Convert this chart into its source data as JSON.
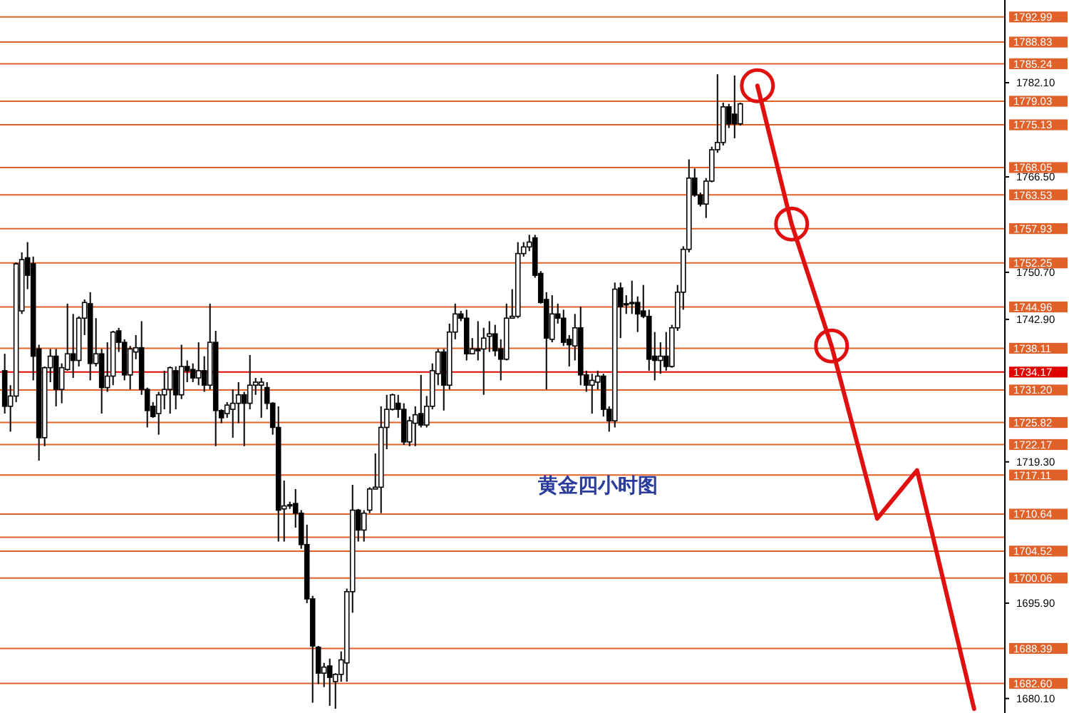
{
  "chart_data": {
    "type": "candlestick",
    "categories": [
      null,
      null,
      null,
      null,
      null,
      null,
      null,
      null,
      null,
      null,
      null,
      null,
      null,
      null,
      null,
      null,
      null,
      null,
      null,
      null,
      null,
      null,
      null,
      null,
      null,
      null,
      null,
      null,
      null,
      null,
      null,
      null,
      null,
      null,
      null,
      null,
      null,
      null,
      null,
      null,
      null,
      null,
      null,
      null,
      null,
      null,
      null,
      null,
      null,
      null,
      null,
      null,
      null,
      null,
      null,
      null,
      null,
      null,
      null,
      null,
      null,
      null,
      null,
      null,
      null,
      null,
      null,
      null,
      null,
      null,
      null,
      null,
      null,
      null,
      null,
      null,
      null,
      null,
      null,
      null,
      null,
      null,
      null,
      null,
      null,
      null,
      null,
      null,
      null,
      null,
      null,
      null,
      null,
      null,
      null,
      null,
      null,
      null,
      null,
      null,
      null,
      null,
      null,
      null,
      null,
      null,
      null,
      null,
      null,
      null,
      null,
      null,
      null,
      null,
      null,
      null,
      null,
      null,
      null,
      null,
      null,
      null,
      null,
      null,
      null,
      null,
      null,
      null,
      null,
      null,
      null,
      null,
      null,
      null,
      null,
      null,
      null,
      null,
      null,
      null,
      null,
      null,
      null,
      null,
      null,
      null,
      null,
      null,
      null,
      null,
      null,
      null,
      null,
      null,
      null,
      null,
      null,
      null,
      null,
      null,
      null,
      null,
      null,
      null,
      null,
      null,
      null,
      null,
      null,
      null,
      null,
      null,
      null,
      null,
      null,
      null
    ],
    "ohlc": [
      [
        1734.4,
        1737.2,
        1727.3,
        1728.5
      ],
      [
        1728.5,
        1732.0,
        1724.3,
        1730.2
      ],
      [
        1730.2,
        1752.3,
        1729.2,
        1752.1
      ],
      [
        1744.3,
        1754.0,
        1743.8,
        1752.8
      ],
      [
        1753.1,
        1755.7,
        1747.9,
        1750.2
      ],
      [
        1752.1,
        1753.3,
        1732.8,
        1736.8
      ],
      [
        1738.0,
        1738.7,
        1719.5,
        1723.3
      ],
      [
        1723.3,
        1735.1,
        1721.9,
        1734.9
      ],
      [
        1734.9,
        1738.0,
        1732.5,
        1736.8
      ],
      [
        1736.8,
        1738.0,
        1728.5,
        1731.3
      ],
      [
        1731.3,
        1735.6,
        1729.0,
        1734.9
      ],
      [
        1734.6,
        1745.5,
        1734.4,
        1737.2
      ],
      [
        1737.2,
        1743.8,
        1733.2,
        1736.1
      ],
      [
        1736.1,
        1743.4,
        1735.1,
        1743.1
      ],
      [
        1743.1,
        1746.2,
        1740.3,
        1745.7
      ],
      [
        1745.5,
        1747.4,
        1732.8,
        1735.6
      ],
      [
        1735.6,
        1743.1,
        1735.1,
        1737.2
      ],
      [
        1737.2,
        1738.0,
        1727.3,
        1731.6
      ],
      [
        1731.6,
        1739.1,
        1730.9,
        1733.5
      ],
      [
        1733.5,
        1741.0,
        1732.0,
        1740.8
      ],
      [
        1741.0,
        1741.5,
        1737.5,
        1739.1
      ],
      [
        1739.1,
        1739.6,
        1732.8,
        1733.7
      ],
      [
        1733.7,
        1738.5,
        1731.3,
        1738.0
      ],
      [
        1737.5,
        1740.3,
        1736.3,
        1738.2
      ],
      [
        1738.2,
        1742.6,
        1730.4,
        1731.3
      ],
      [
        1731.3,
        1731.6,
        1725.0,
        1727.8
      ],
      [
        1728.5,
        1729.2,
        1726.6,
        1726.8
      ],
      [
        1727.3,
        1730.9,
        1723.8,
        1730.4
      ],
      [
        1730.4,
        1734.4,
        1728.0,
        1731.3
      ],
      [
        1731.3,
        1735.1,
        1727.3,
        1734.9
      ],
      [
        1734.4,
        1735.1,
        1728.0,
        1730.4
      ],
      [
        1730.4,
        1738.7,
        1729.7,
        1735.1
      ],
      [
        1735.1,
        1736.1,
        1732.5,
        1734.4
      ],
      [
        1734.6,
        1735.6,
        1732.5,
        1733.2
      ],
      [
        1733.2,
        1739.1,
        1732.0,
        1734.4
      ],
      [
        1734.4,
        1736.8,
        1730.9,
        1732.0
      ],
      [
        1732.0,
        1745.5,
        1731.3,
        1739.1
      ],
      [
        1739.1,
        1741.0,
        1721.9,
        1727.8
      ],
      [
        1727.8,
        1728.0,
        1725.7,
        1726.6
      ],
      [
        1727.3,
        1729.2,
        1726.6,
        1728.7
      ],
      [
        1728.0,
        1731.3,
        1723.3,
        1729.0
      ],
      [
        1729.0,
        1732.5,
        1725.7,
        1730.4
      ],
      [
        1730.4,
        1730.9,
        1721.9,
        1729.0
      ],
      [
        1729.0,
        1737.0,
        1728.0,
        1732.0
      ],
      [
        1732.0,
        1733.2,
        1730.4,
        1732.5
      ],
      [
        1732.0,
        1733.2,
        1726.6,
        1732.5
      ],
      [
        1731.6,
        1732.5,
        1728.0,
        1729.0
      ],
      [
        1729.0,
        1729.2,
        1723.8,
        1725.0
      ],
      [
        1725.0,
        1728.5,
        1706.1,
        1711.3
      ],
      [
        1711.5,
        1716.2,
        1706.1,
        1712.0
      ],
      [
        1712.0,
        1712.7,
        1711.5,
        1712.2
      ],
      [
        1712.4,
        1714.8,
        1708.4,
        1710.8
      ],
      [
        1710.8,
        1711.3,
        1704.9,
        1705.6
      ],
      [
        1705.6,
        1708.9,
        1695.9,
        1696.6
      ],
      [
        1696.6,
        1697.1,
        1679.4,
        1688.8
      ],
      [
        1688.6,
        1688.8,
        1682.5,
        1684.3
      ],
      [
        1684.3,
        1686.0,
        1682.0,
        1685.3
      ],
      [
        1685.5,
        1686.7,
        1678.9,
        1683.6
      ],
      [
        1682.9,
        1684.3,
        1678.4,
        1684.1
      ],
      [
        1684.1,
        1687.9,
        1682.9,
        1686.5
      ],
      [
        1686.0,
        1698.3,
        1682.9,
        1697.8
      ],
      [
        1697.8,
        1715.5,
        1694.3,
        1711.3
      ],
      [
        1711.3,
        1711.5,
        1706.1,
        1708.0
      ],
      [
        1708.0,
        1711.3,
        1706.1,
        1710.8
      ],
      [
        1711.3,
        1715.1,
        1710.8,
        1714.8
      ],
      [
        1714.8,
        1720.7,
        1714.8,
        1715.1
      ],
      [
        1715.1,
        1728.5,
        1710.8,
        1725.0
      ],
      [
        1725.0,
        1730.4,
        1721.4,
        1728.0
      ],
      [
        1728.0,
        1730.6,
        1727.8,
        1730.4
      ],
      [
        1729.0,
        1730.4,
        1726.6,
        1728.0
      ],
      [
        1728.0,
        1729.0,
        1722.1,
        1722.6
      ],
      [
        1722.6,
        1726.8,
        1721.9,
        1726.1
      ],
      [
        1725.7,
        1728.5,
        1721.9,
        1727.1
      ],
      [
        1727.3,
        1733.7,
        1725.0,
        1725.4
      ],
      [
        1725.4,
        1730.2,
        1725.0,
        1728.5
      ],
      [
        1728.5,
        1735.6,
        1728.0,
        1734.4
      ],
      [
        1733.9,
        1738.0,
        1732.0,
        1737.5
      ],
      [
        1737.5,
        1738.0,
        1727.8,
        1732.0
      ],
      [
        1732.0,
        1742.2,
        1731.3,
        1740.8
      ],
      [
        1740.8,
        1745.5,
        1739.6,
        1743.8
      ],
      [
        1743.8,
        1744.3,
        1742.6,
        1743.1
      ],
      [
        1743.1,
        1744.5,
        1736.1,
        1737.2
      ],
      [
        1737.2,
        1739.8,
        1737.2,
        1738.0
      ],
      [
        1738.0,
        1742.6,
        1736.1,
        1737.7
      ],
      [
        1738.0,
        1741.5,
        1730.4,
        1739.8
      ],
      [
        1740.1,
        1742.6,
        1737.5,
        1740.5
      ],
      [
        1740.5,
        1742.0,
        1736.8,
        1737.7
      ],
      [
        1738.0,
        1739.6,
        1732.8,
        1736.3
      ],
      [
        1736.3,
        1745.5,
        1736.1,
        1743.1
      ],
      [
        1743.1,
        1747.9,
        1743.1,
        1743.4
      ],
      [
        1743.4,
        1755.7,
        1743.1,
        1753.8
      ],
      [
        1753.8,
        1755.7,
        1753.3,
        1754.9
      ],
      [
        1754.9,
        1756.9,
        1754.2,
        1755.7
      ],
      [
        1756.4,
        1756.9,
        1749.8,
        1750.2
      ],
      [
        1750.5,
        1750.9,
        1745.5,
        1745.7
      ],
      [
        1746.2,
        1747.4,
        1731.3,
        1739.8
      ],
      [
        1739.6,
        1746.9,
        1739.1,
        1743.8
      ],
      [
        1743.8,
        1745.5,
        1742.2,
        1743.1
      ],
      [
        1743.1,
        1744.5,
        1738.5,
        1739.1
      ],
      [
        1739.6,
        1740.3,
        1735.1,
        1738.7
      ],
      [
        1738.5,
        1743.8,
        1736.1,
        1741.5
      ],
      [
        1741.5,
        1745.0,
        1732.0,
        1733.7
      ],
      [
        1733.7,
        1734.4,
        1730.9,
        1732.0
      ],
      [
        1732.0,
        1733.9,
        1727.3,
        1732.8
      ],
      [
        1732.5,
        1734.4,
        1731.3,
        1733.5
      ],
      [
        1733.5,
        1733.9,
        1726.8,
        1728.0
      ],
      [
        1728.0,
        1728.5,
        1724.3,
        1726.1
      ],
      [
        1726.1,
        1749.0,
        1725.0,
        1747.9
      ],
      [
        1748.1,
        1749.0,
        1739.8,
        1745.0
      ],
      [
        1745.5,
        1746.9,
        1743.8,
        1745.3
      ],
      [
        1745.5,
        1749.3,
        1743.8,
        1745.7
      ],
      [
        1745.7,
        1746.7,
        1740.8,
        1743.8
      ],
      [
        1744.3,
        1748.6,
        1743.1,
        1743.4
      ],
      [
        1743.4,
        1744.5,
        1734.4,
        1736.3
      ],
      [
        1736.8,
        1740.8,
        1732.8,
        1736.1
      ],
      [
        1736.1,
        1739.1,
        1733.9,
        1736.8
      ],
      [
        1736.8,
        1740.8,
        1734.4,
        1735.1
      ],
      [
        1735.1,
        1742.0,
        1734.9,
        1741.5
      ],
      [
        1741.5,
        1748.6,
        1741.0,
        1747.4
      ],
      [
        1747.4,
        1755.0,
        1744.5,
        1754.5
      ],
      [
        1754.5,
        1769.4,
        1754.0,
        1766.3
      ],
      [
        1766.3,
        1767.9,
        1763.2,
        1763.5
      ],
      [
        1763.5,
        1763.9,
        1761.6,
        1762.0
      ],
      [
        1762.0,
        1766.3,
        1759.7,
        1765.8
      ],
      [
        1765.8,
        1771.5,
        1765.6,
        1771.0
      ],
      [
        1771.0,
        1783.5,
        1770.5,
        1772.2
      ],
      [
        1772.2,
        1778.8,
        1771.7,
        1778.1
      ],
      [
        1778.1,
        1778.6,
        1774.6,
        1775.3
      ],
      [
        1776.9,
        1783.3,
        1772.9,
        1775.3
      ],
      [
        1775.3,
        1778.8,
        1775.0,
        1778.6
      ],
      null,
      null,
      null,
      null,
      null,
      null,
      null,
      null,
      null,
      null,
      null,
      null,
      null,
      null,
      null,
      null,
      null,
      null,
      null,
      null,
      null,
      null,
      null,
      null,
      null,
      null,
      null,
      null,
      null,
      null,
      null,
      null,
      null,
      null,
      null,
      null,
      null,
      null,
      null,
      null,
      null,
      null,
      null,
      null,
      null,
      null
    ],
    "series": [
      {
        "type": "line",
        "color": "#e01010",
        "values": [
          null,
          null,
          null,
          null,
          null,
          null,
          null,
          null,
          null,
          null,
          null,
          null,
          null,
          null,
          null,
          null,
          null,
          null,
          null,
          null,
          null,
          null,
          null,
          null,
          null,
          null,
          null,
          null,
          null,
          null,
          null,
          null,
          null,
          null,
          null,
          null,
          null,
          null,
          null,
          null,
          null,
          null,
          null,
          null,
          null,
          null,
          null,
          null,
          null,
          null,
          null,
          null,
          null,
          null,
          null,
          null,
          null,
          null,
          null,
          null,
          null,
          null,
          null,
          null,
          null,
          null,
          null,
          null,
          null,
          null,
          null,
          null,
          null,
          null,
          null,
          null,
          null,
          null,
          null,
          null,
          null,
          null,
          null,
          null,
          null,
          null,
          null,
          null,
          null,
          null,
          null,
          null,
          null,
          null,
          null,
          null,
          null,
          null,
          null,
          null,
          null,
          null,
          null,
          null,
          null,
          null,
          null,
          null,
          null,
          null,
          null,
          null,
          null,
          null,
          null,
          null,
          null,
          null,
          null,
          null,
          null,
          null,
          null,
          null,
          null,
          null,
          null,
          null,
          null,
          null,
          null,
          null,
          1781.6,
          null,
          null,
          null,
          null,
          null,
          1758.7,
          null,
          null,
          null,
          null,
          null,
          null,
          1738.5,
          null,
          null,
          null,
          null,
          null,
          null,
          null,
          1709.9,
          null,
          null,
          null,
          null,
          null,
          null,
          1717.9,
          null,
          null,
          null,
          null,
          null,
          null,
          null,
          null,
          null,
          1678.4,
          null,
          null,
          null,
          null,
          null
        ]
      },
      {
        "type": "scatter",
        "color": "#e01010",
        "marker": "circle",
        "values": [
          null,
          null,
          null,
          null,
          null,
          null,
          null,
          null,
          null,
          null,
          null,
          null,
          null,
          null,
          null,
          null,
          null,
          null,
          null,
          null,
          null,
          null,
          null,
          null,
          null,
          null,
          null,
          null,
          null,
          null,
          null,
          null,
          null,
          null,
          null,
          null,
          null,
          null,
          null,
          null,
          null,
          null,
          null,
          null,
          null,
          null,
          null,
          null,
          null,
          null,
          null,
          null,
          null,
          null,
          null,
          null,
          null,
          null,
          null,
          null,
          null,
          null,
          null,
          null,
          null,
          null,
          null,
          null,
          null,
          null,
          null,
          null,
          null,
          null,
          null,
          null,
          null,
          null,
          null,
          null,
          null,
          null,
          null,
          null,
          null,
          null,
          null,
          null,
          null,
          null,
          null,
          null,
          null,
          null,
          null,
          null,
          null,
          null,
          null,
          null,
          null,
          null,
          null,
          null,
          null,
          null,
          null,
          null,
          null,
          null,
          null,
          null,
          null,
          null,
          null,
          null,
          null,
          null,
          null,
          null,
          null,
          null,
          null,
          null,
          null,
          null,
          null,
          null,
          null,
          null,
          null,
          null,
          1781.6,
          null,
          null,
          null,
          null,
          null,
          1758.7,
          null,
          null,
          null,
          null,
          null,
          null,
          1738.5,
          null,
          null,
          null,
          null,
          null,
          null,
          null,
          null,
          null,
          null,
          null,
          null,
          null,
          null,
          null,
          null,
          null,
          null,
          null,
          null,
          null,
          null,
          null,
          null,
          null,
          null,
          null,
          null,
          null,
          null
        ]
      }
    ],
    "ylim": [
      1677.7,
      1795.8
    ],
    "yticks": [
      {
        "value": 1782.1,
        "label": "1782.10"
      },
      {
        "value": 1766.5,
        "label": "1766.50"
      },
      {
        "value": 1750.7,
        "label": "1750.70"
      },
      {
        "value": 1742.9,
        "label": "1742.90"
      },
      {
        "value": 1719.3,
        "label": "1719.30"
      },
      {
        "value": 1695.9,
        "label": "1695.90"
      },
      {
        "value": 1680.1,
        "label": "1680.10"
      }
    ],
    "tick_labels": "y",
    "ref_lines": [
      {
        "axis": "y",
        "value": 1792.99,
        "label": "1792.99",
        "color": "#e0622a"
      },
      {
        "axis": "y",
        "value": 1788.83,
        "label": "1788.83",
        "color": "#e0622a"
      },
      {
        "axis": "y",
        "value": 1785.24,
        "label": "1785.24",
        "color": "#e0622a"
      },
      {
        "axis": "y",
        "value": 1779.03,
        "label": "1779.03",
        "color": "#e0622a"
      },
      {
        "axis": "y",
        "value": 1775.13,
        "label": "1775.13",
        "color": "#e0622a"
      },
      {
        "axis": "y",
        "value": 1768.05,
        "label": "1768.05",
        "color": "#e0622a"
      },
      {
        "axis": "y",
        "value": 1763.53,
        "label": "1763.53",
        "color": "#e0622a"
      },
      {
        "axis": "y",
        "value": 1757.93,
        "label": "1757.93",
        "color": "#e0622a"
      },
      {
        "axis": "y",
        "value": 1752.25,
        "label": "1752.25",
        "color": "#e0622a"
      },
      {
        "axis": "y",
        "value": 1744.96,
        "label": "1744.96",
        "color": "#e0622a"
      },
      {
        "axis": "y",
        "value": 1738.11,
        "label": "1738.11",
        "color": "#e0622a"
      },
      {
        "axis": "y",
        "value": 1734.17,
        "label": "1734.17",
        "color": "#e00000"
      },
      {
        "axis": "y",
        "value": 1731.2,
        "label": "1731.20",
        "color": "#e0622a"
      },
      {
        "axis": "y",
        "value": 1725.82,
        "label": "1725.82",
        "color": "#e0622a"
      },
      {
        "axis": "y",
        "value": 1722.17,
        "label": "1722.17",
        "color": "#e0622a"
      },
      {
        "axis": "y",
        "value": 1717.11,
        "label": "1717.11",
        "color": "#e0622a"
      },
      {
        "axis": "y",
        "value": 1710.64,
        "label": "1710.64",
        "color": "#e0622a"
      },
      {
        "axis": "y",
        "value": 1706.8,
        "color": "#e0622a"
      },
      {
        "axis": "y",
        "value": 1704.52,
        "label": "1704.52",
        "color": "#e0622a"
      },
      {
        "axis": "y",
        "value": 1700.06,
        "label": "1700.06",
        "color": "#e0622a"
      },
      {
        "axis": "y",
        "value": 1688.39,
        "label": "1688.39",
        "color": "#e0622a"
      },
      {
        "axis": "y",
        "value": 1682.6,
        "label": "1682.60",
        "color": "#e0622a"
      }
    ],
    "annotations": [
      "黄金四小时图"
    ]
  }
}
